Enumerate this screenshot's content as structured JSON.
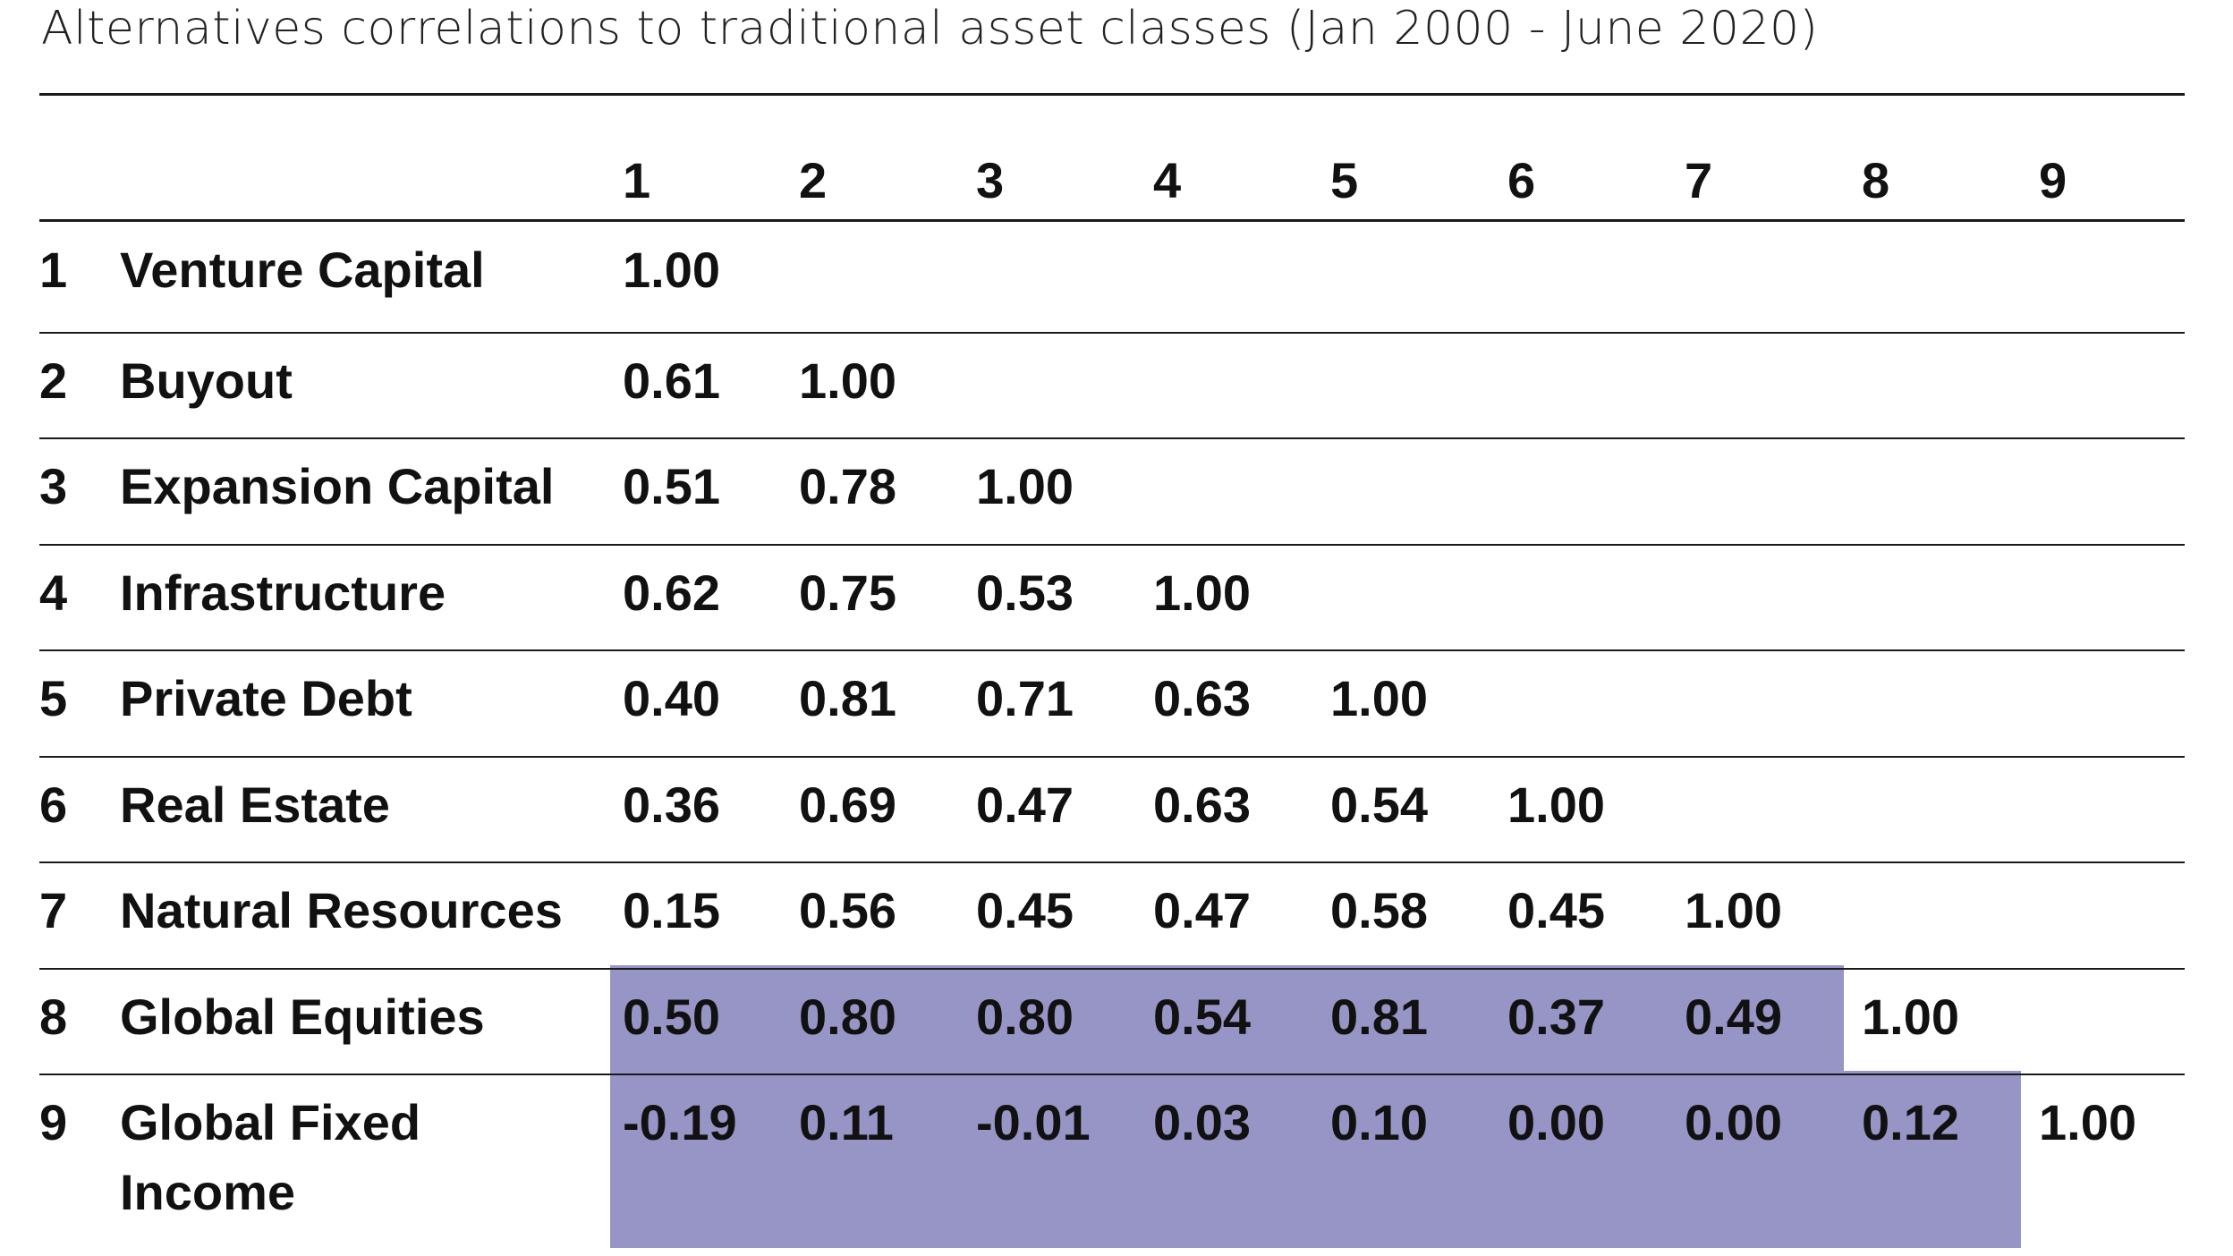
{
  "chart_data": {
    "type": "table",
    "title": "Alternatives correlations to traditional asset classes (Jan 2000 - June 2020)",
    "column_headers": [
      "1",
      "2",
      "3",
      "4",
      "5",
      "6",
      "7",
      "8",
      "9"
    ],
    "rows": [
      {
        "number": "1",
        "label": [
          "Venture Capital"
        ],
        "values": [
          "1.00"
        ]
      },
      {
        "number": "2",
        "label": [
          "Buyout"
        ],
        "values": [
          "0.61",
          "1.00"
        ]
      },
      {
        "number": "3",
        "label": [
          "Expansion Capital"
        ],
        "values": [
          "0.51",
          "0.78",
          "1.00"
        ]
      },
      {
        "number": "4",
        "label": [
          "Infrastructure"
        ],
        "values": [
          "0.62",
          "0.75",
          "0.53",
          "1.00"
        ]
      },
      {
        "number": "5",
        "label": [
          "Private Debt"
        ],
        "values": [
          "0.40",
          "0.81",
          "0.71",
          "0.63",
          "1.00"
        ]
      },
      {
        "number": "6",
        "label": [
          "Real Estate"
        ],
        "values": [
          "0.36",
          "0.69",
          "0.47",
          "0.63",
          "0.54",
          "1.00"
        ]
      },
      {
        "number": "7",
        "label": [
          "Natural Resources"
        ],
        "values": [
          "0.15",
          "0.56",
          "0.45",
          "0.47",
          "0.58",
          "0.45",
          "1.00"
        ]
      },
      {
        "number": "8",
        "label": [
          "Global Equities"
        ],
        "values": [
          "0.50",
          "0.80",
          "0.80",
          "0.54",
          "0.81",
          "0.37",
          "0.49",
          "1.00"
        ]
      },
      {
        "number": "9",
        "label": [
          "Global Fixed",
          "Income"
        ],
        "values": [
          "-0.19",
          "0.11",
          "-0.01",
          "0.03",
          "0.10",
          "0.00",
          "0.00",
          "0.12",
          "1.00"
        ]
      }
    ],
    "highlighted_cells": {
      "8": 7,
      "9": 8
    },
    "colors": {
      "highlight": "#9795c6",
      "text": "#111111",
      "rule": "#1a1a1a",
      "background": "#ffffff"
    }
  }
}
